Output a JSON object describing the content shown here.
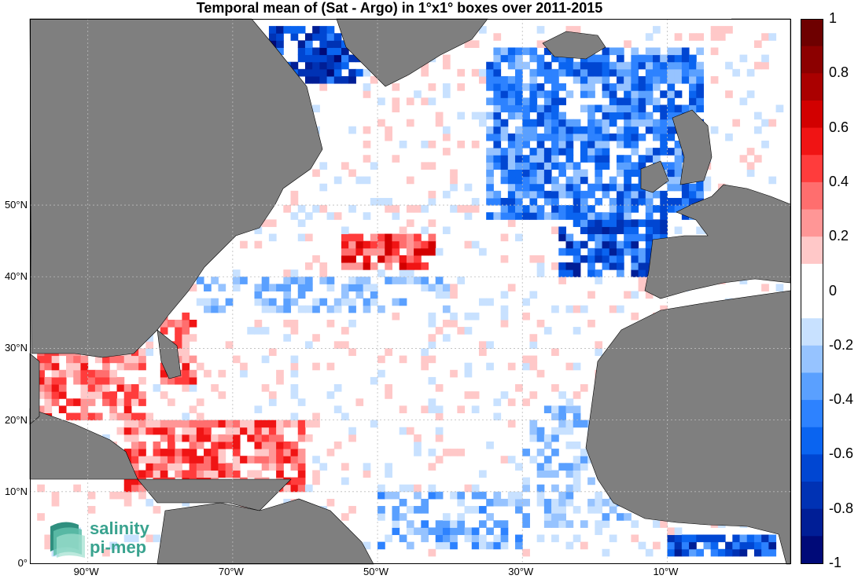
{
  "title": "Temporal mean of (Sat - Argo) in 1°x1° boxes over 2011-2015",
  "map": {
    "projection": "equirectangular",
    "lon_range": [
      -98,
      7
    ],
    "lat_range": [
      0,
      76
    ],
    "land_color": "#7f7f7f",
    "ocean_color": "#ffffff",
    "lat_ticks": [
      {
        "value": 0,
        "label": "0°"
      },
      {
        "value": 10,
        "label": "10°N"
      },
      {
        "value": 20,
        "label": "20°N"
      },
      {
        "value": 30,
        "label": "30°N"
      },
      {
        "value": 40,
        "label": "40°N"
      },
      {
        "value": 50,
        "label": "50°N"
      }
    ],
    "lon_ticks": [
      {
        "value": -90,
        "label": "90°W"
      },
      {
        "value": -70,
        "label": "70°W"
      },
      {
        "value": -50,
        "label": "50°W"
      },
      {
        "value": -30,
        "label": "30°W"
      },
      {
        "value": -10,
        "label": "10°W"
      }
    ]
  },
  "colorbar": {
    "min": -1,
    "max": 1,
    "labels": [
      "1",
      "0.8",
      "0.6",
      "0.4",
      "0.2",
      "0",
      "-0.2",
      "-0.4",
      "-0.6",
      "-0.8",
      "-1"
    ],
    "colors_top_to_bottom": [
      "#6e0000",
      "#8c0000",
      "#aa0000",
      "#d20000",
      "#f01414",
      "#ff3c3c",
      "#ff6e6e",
      "#ff9696",
      "#ffc8c8",
      "#ffffff",
      "#ffffff",
      "#c8e1ff",
      "#96c3ff",
      "#5aa0ff",
      "#2d82ff",
      "#0a64f0",
      "#0046d2",
      "#0032b4",
      "#001e96",
      "#000a78"
    ]
  },
  "chart_data": {
    "type": "heatmap",
    "title": "Temporal mean of (Sat - Argo) in 1°x1° boxes over 2011-2015",
    "value_range": [
      -1,
      1
    ],
    "regions": [
      {
        "lon": [
          -65,
          -52
        ],
        "lat": [
          67,
          75
        ],
        "mean": -0.7
      },
      {
        "lon": [
          -35,
          -5
        ],
        "lat": [
          48,
          72
        ],
        "mean": -0.45
      },
      {
        "lon": [
          -25,
          -10
        ],
        "lat": [
          40,
          55
        ],
        "mean": -0.6
      },
      {
        "lon": [
          -55,
          -42
        ],
        "lat": [
          41,
          46
        ],
        "mean": 0.45
      },
      {
        "lon": [
          -97,
          -82
        ],
        "lat": [
          20,
          30
        ],
        "mean": 0.3
      },
      {
        "lon": [
          -85,
          -60
        ],
        "lat": [
          10,
          20
        ],
        "mean": 0.35
      },
      {
        "lon": [
          -80,
          -75
        ],
        "lat": [
          25,
          35
        ],
        "mean": 0.3
      },
      {
        "lon": [
          -75,
          -40
        ],
        "lat": [
          35,
          40
        ],
        "mean": -0.15
      },
      {
        "lon": [
          -30,
          -15
        ],
        "lat": [
          5,
          22
        ],
        "mean": -0.15
      },
      {
        "lon": [
          -50,
          -30
        ],
        "lat": [
          2,
          10
        ],
        "mean": -0.2
      },
      {
        "lon": [
          -10,
          5
        ],
        "lat": [
          1,
          4
        ],
        "mean": -0.6
      }
    ]
  },
  "logo": {
    "line1": "salinity",
    "line2": "pi-mep",
    "color": "#3aa38f"
  }
}
